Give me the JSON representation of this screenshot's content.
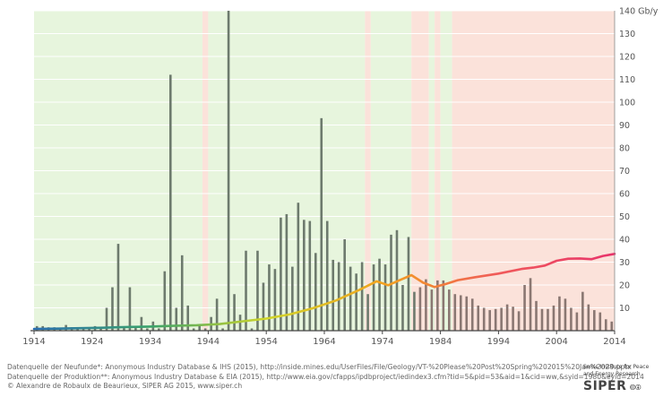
{
  "chart_data": {
    "type": "bar",
    "y_unit": "Gb/y",
    "xlim": [
      1914,
      2014
    ],
    "ylim": [
      0,
      140
    ],
    "x_ticks": [
      1914,
      1924,
      1934,
      1944,
      1954,
      1964,
      1974,
      1984,
      1994,
      2004,
      2014
    ],
    "y_ticks": [
      10,
      20,
      30,
      40,
      50,
      60,
      70,
      80,
      90,
      100,
      110,
      120,
      130,
      140
    ],
    "y_tick_labels": [
      "10",
      "20",
      "30",
      "40",
      "50",
      "60",
      "70",
      "80",
      "90",
      "100",
      "110",
      "120",
      "130",
      "140 Gb/y"
    ],
    "grid": "horizontal",
    "background_bands": [
      {
        "from": 1914,
        "to": 1943,
        "color": "#e7f5dd"
      },
      {
        "from": 1943,
        "to": 1944,
        "color": "#fbe2da"
      },
      {
        "from": 1944,
        "to": 1971,
        "color": "#e7f5dd"
      },
      {
        "from": 1971,
        "to": 1972,
        "color": "#fbe2da"
      },
      {
        "from": 1972,
        "to": 1979,
        "color": "#e7f5dd"
      },
      {
        "from": 1979,
        "to": 1982,
        "color": "#fbe2da"
      },
      {
        "from": 1982,
        "to": 1983,
        "color": "#e7f5dd"
      },
      {
        "from": 1983,
        "to": 1984,
        "color": "#fbe2da"
      },
      {
        "from": 1984,
        "to": 1986,
        "color": "#e7f5dd"
      },
      {
        "from": 1986,
        "to": 2014,
        "color": "#fbe2da"
      }
    ],
    "series": [
      {
        "kind": "bars",
        "color": "#6d7a6d",
        "color_after_1980": "#8a7772",
        "years": [
          1914,
          1915,
          1916,
          1917,
          1918,
          1919,
          1920,
          1921,
          1922,
          1923,
          1924,
          1925,
          1926,
          1927,
          1928,
          1929,
          1930,
          1931,
          1932,
          1933,
          1934,
          1935,
          1936,
          1937,
          1938,
          1939,
          1940,
          1941,
          1942,
          1943,
          1944,
          1945,
          1946,
          1947,
          1948,
          1949,
          1950,
          1951,
          1952,
          1953,
          1954,
          1955,
          1956,
          1957,
          1958,
          1959,
          1960,
          1961,
          1962,
          1963,
          1964,
          1965,
          1966,
          1967,
          1968,
          1969,
          1970,
          1971,
          1972,
          1973,
          1974,
          1975,
          1976,
          1977,
          1978,
          1979,
          1980,
          1981,
          1982,
          1983,
          1984,
          1985,
          1986,
          1987,
          1988,
          1989,
          1990,
          1991,
          1992,
          1993,
          1994,
          1995,
          1996,
          1997,
          1998,
          1999,
          2000,
          2001,
          2002,
          2003,
          2004,
          2005,
          2006,
          2007,
          2008,
          2009,
          2010,
          2011,
          2012,
          2013
        ],
        "values": [
          2,
          2,
          1.5,
          1.5,
          1,
          2.5,
          1.5,
          1.5,
          1.5,
          1,
          2,
          1.5,
          10,
          19,
          38,
          1.5,
          19,
          1.5,
          6,
          1,
          4,
          1,
          26,
          112,
          10,
          33,
          11,
          1,
          2,
          1,
          6,
          14,
          1,
          140,
          16,
          7,
          35,
          1,
          35,
          21,
          29,
          27,
          49.5,
          51,
          28,
          56,
          48.5,
          48,
          34,
          93,
          48,
          31,
          30,
          40,
          28,
          25,
          30,
          16,
          29,
          31.5,
          29,
          42,
          44,
          20,
          41,
          17,
          19,
          22.5,
          18,
          22,
          22,
          18,
          16,
          15.5,
          15,
          14,
          11,
          10,
          9,
          9.5,
          10,
          11.5,
          10.5,
          8.5,
          20,
          23,
          13,
          9.5,
          9.5,
          11,
          15,
          14,
          10,
          8,
          17,
          11.5,
          9,
          8,
          5,
          4
        ]
      },
      {
        "kind": "line",
        "gradient": [
          "#2a6fb0",
          "#3aa36a",
          "#cfd62a",
          "#f2a21e",
          "#f05a5a",
          "#e8336b"
        ],
        "years": [
          1914,
          1918,
          1922,
          1926,
          1930,
          1934,
          1938,
          1942,
          1946,
          1950,
          1954,
          1958,
          1962,
          1966,
          1970,
          1973,
          1975,
          1977,
          1979,
          1981,
          1983,
          1985,
          1987,
          1990,
          1994,
          1998,
          2000,
          2002,
          2004,
          2006,
          2008,
          2010,
          2012,
          2014
        ],
        "values": [
          0.8,
          0.9,
          1.1,
          1.3,
          1.6,
          1.8,
          2.1,
          2.4,
          2.9,
          4.1,
          5.3,
          7.1,
          9.8,
          13.2,
          17.8,
          21.6,
          19.9,
          22.1,
          24.3,
          21.0,
          19.1,
          20.5,
          22.1,
          23.4,
          25.0,
          27.0,
          27.6,
          28.5,
          30.6,
          31.5,
          31.6,
          31.3,
          32.7,
          33.6
        ]
      }
    ]
  },
  "footer": {
    "line1": "Datenquelle der Neufunde*: Anonymous Industry Database & IHS (2015), http://inside.mines.edu/UserFiles/File/Geology/VT-%20Please%20Post%20Spring%202015%20Jan%2029.pptx",
    "line2": "Datenquelle der Produktion**: Anonymous Industry Database & EIA (2015), http://www.eia.gov/cfapps/ipdbproject/iedindex3.cfm?tid=5&pid=53&aid=1&cid=ww,&syid=1980&eyid=2014",
    "line3": "© Alexandre de Robaulx de Beaurieux, SIPER AG 2015, www.siper.ch"
  },
  "logo": {
    "line1": "Swiss Institute for Peace",
    "line2": "and Energy Research",
    "name": "SIPER",
    "license": "🅭🅯"
  }
}
